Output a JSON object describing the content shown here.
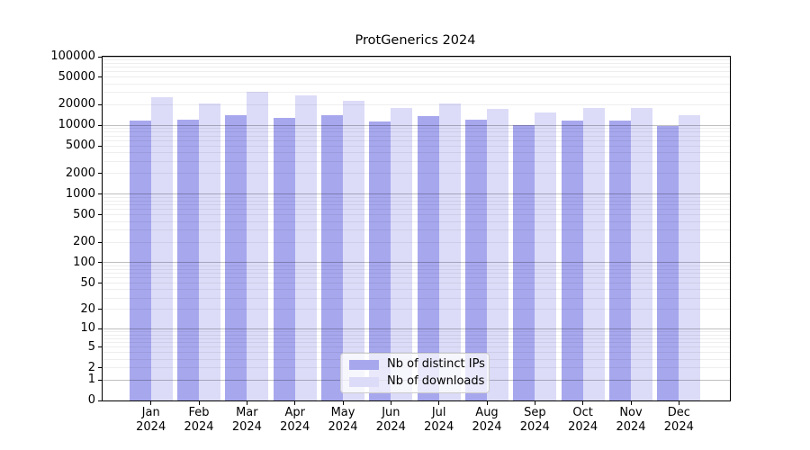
{
  "figure": {
    "title": "ProtGenerics 2024"
  },
  "chart_data": {
    "type": "bar",
    "grouped": true,
    "title": "ProtGenerics 2024",
    "xlabel": "",
    "ylabel": "",
    "year": "2024",
    "categories": [
      "Jan",
      "Feb",
      "Mar",
      "Apr",
      "May",
      "Jun",
      "Jul",
      "Aug",
      "Sep",
      "Oct",
      "Nov",
      "Dec"
    ],
    "series": [
      {
        "name": "Nb of distinct IPs",
        "color": "#a7a7ee",
        "values": [
          11850,
          12300,
          13900,
          13000,
          14200,
          11300,
          13700,
          12000,
          10200,
          11800,
          11800,
          9700
        ]
      },
      {
        "name": "Nb of downloads",
        "color": "#dcdcf8",
        "values": [
          26000,
          20800,
          31000,
          27600,
          22600,
          18000,
          20600,
          17400,
          15300,
          17800,
          17800,
          14200
        ]
      }
    ],
    "y_scale": "log10(1+v)",
    "ylim": [
      0,
      100000
    ],
    "y_ticks": [
      0,
      1,
      2,
      5,
      10,
      20,
      50,
      100,
      200,
      500,
      1000,
      2000,
      5000,
      10000,
      20000,
      50000,
      100000
    ],
    "grid": "horizontal log gridlines, major decades darker, minor lighter, drawn over bars",
    "legend_position": "inside bottom-center",
    "axis_color": "#000000"
  }
}
